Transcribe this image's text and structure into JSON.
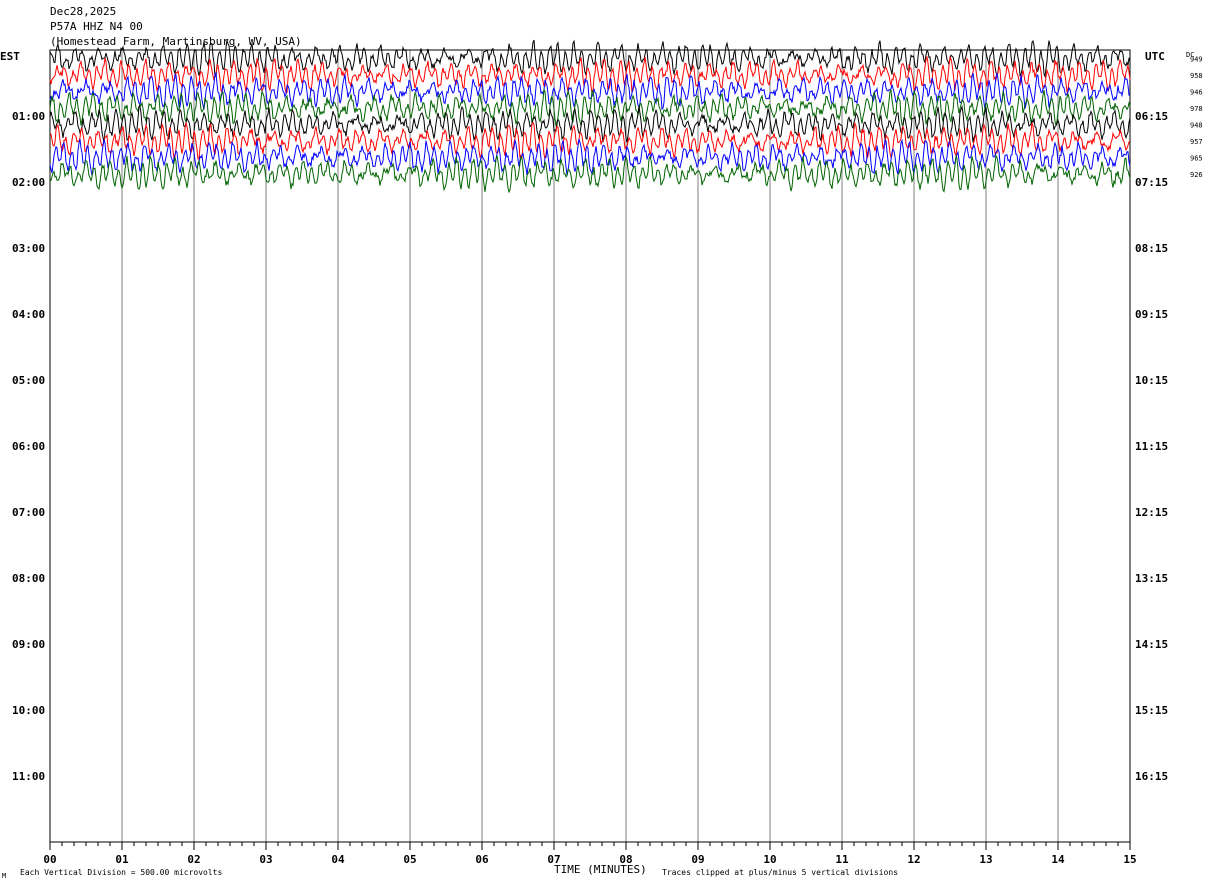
{
  "header": {
    "date": "Dec28,2025",
    "station": "P57A HHZ N4 00",
    "location": "(Homestead Farm, Martinsburg, WV, USA)"
  },
  "labels": {
    "left_zone": "EST",
    "right_zone": "UTC",
    "dc": "DC",
    "xlabel": "TIME (MINUTES)",
    "footer_left": "Each Vertical Division =  500.00 microvolts",
    "footer_right": "Traces clipped at plus/minus 5 vertical divisions",
    "corner_mark": "M"
  },
  "chart_data": {
    "type": "line",
    "title": "P57A HHZ N4 00",
    "xlabel": "TIME (MINUTES)",
    "ylabel": "",
    "xlim": [
      0,
      15
    ],
    "x_ticks": [
      "00",
      "01",
      "02",
      "03",
      "04",
      "05",
      "06",
      "07",
      "08",
      "09",
      "10",
      "11",
      "12",
      "13",
      "14",
      "15"
    ],
    "left_hour_labels": [
      "01:00",
      "02:00",
      "03:00",
      "04:00",
      "05:00",
      "06:00",
      "07:00",
      "08:00",
      "09:00",
      "10:00",
      "11:00"
    ],
    "right_hour_labels": [
      "06:15",
      "07:15",
      "08:15",
      "09:15",
      "10:15",
      "11:15",
      "12:15",
      "13:15",
      "14:15",
      "15:15",
      "16:15"
    ],
    "rows_per_hour": 4,
    "total_rows": 48,
    "traces": [
      {
        "row": 0,
        "dc": "949",
        "color": "#000000"
      },
      {
        "row": 1,
        "dc": "958",
        "color": "#ff0000"
      },
      {
        "row": 2,
        "dc": "946",
        "color": "#0000ff"
      },
      {
        "row": 3,
        "dc": "978",
        "color": "#006400"
      },
      {
        "row": 4,
        "dc": "948",
        "color": "#000000"
      },
      {
        "row": 5,
        "dc": "957",
        "color": "#ff0000"
      },
      {
        "row": 6,
        "dc": "965",
        "color": "#0000ff"
      },
      {
        "row": 7,
        "dc": "926",
        "color": "#006400"
      }
    ],
    "grid": true,
    "vertical_division_microvolts": 500.0,
    "clip_divisions": 5
  }
}
